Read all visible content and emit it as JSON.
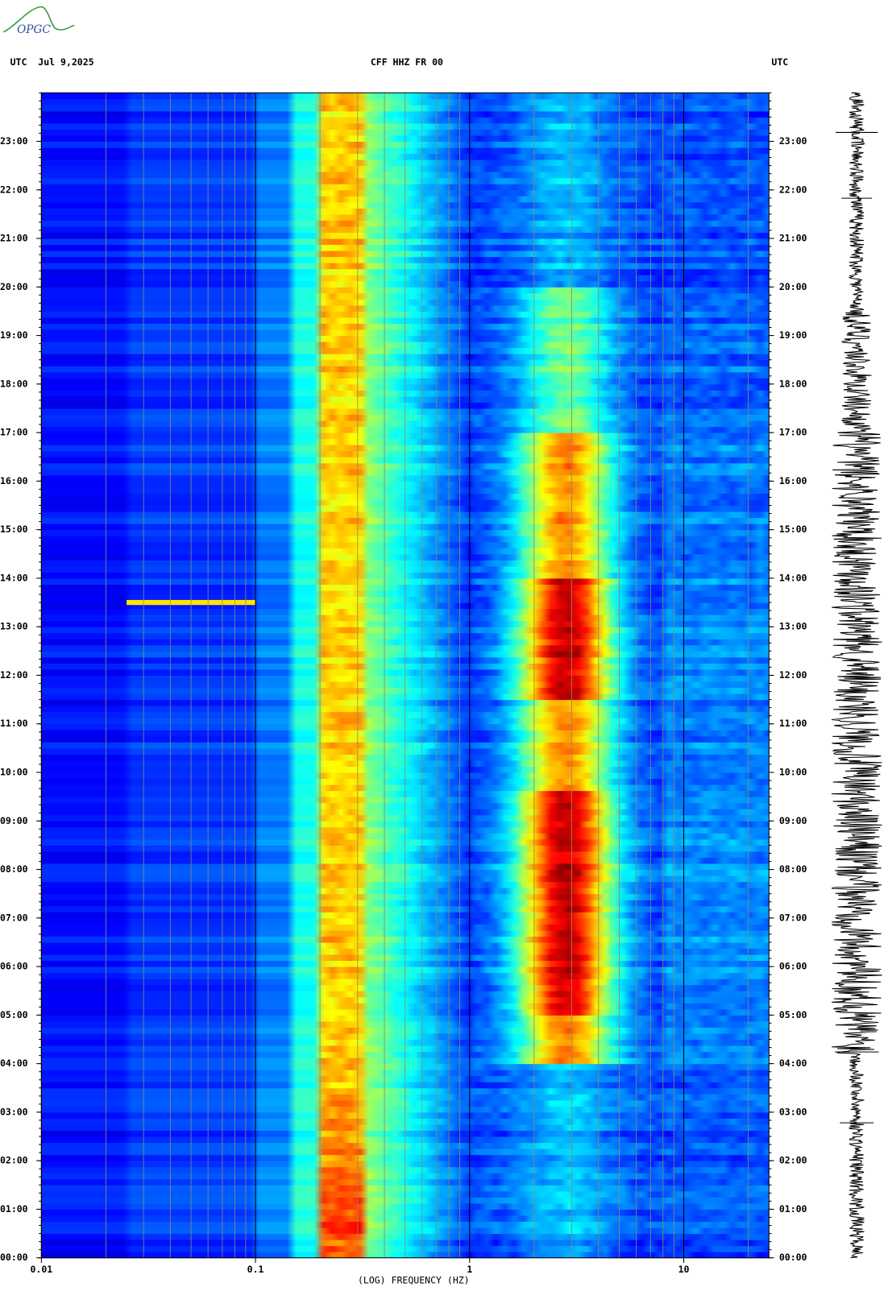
{
  "chart_data": {
    "type": "spectrogram",
    "logo": "OPGC",
    "header_left": "UTC  Jul 9,2025",
    "title": "CFF HHZ FR 00",
    "header_right": "UTC",
    "xlabel": "(LOG) FREQUENCY (HZ)",
    "xscale": "log",
    "xlim": [
      0.01,
      25
    ],
    "xticks": [
      0.01,
      0.1,
      1,
      10
    ],
    "ylim": [
      0,
      24
    ],
    "yticks": [
      {
        "value": 0,
        "label": "00:00"
      },
      {
        "value": 1,
        "label": "01:00"
      },
      {
        "value": 2,
        "label": "02:00"
      },
      {
        "value": 3,
        "label": "03:00"
      },
      {
        "value": 4,
        "label": "04:00"
      },
      {
        "value": 5,
        "label": "05:00"
      },
      {
        "value": 6,
        "label": "06:00"
      },
      {
        "value": 7,
        "label": "07:00"
      },
      {
        "value": 8,
        "label": "08:00"
      },
      {
        "value": 9,
        "label": "09:00"
      },
      {
        "value": 10,
        "label": "10:00"
      },
      {
        "value": 11,
        "label": "11:00"
      },
      {
        "value": 12,
        "label": "12:00"
      },
      {
        "value": 13,
        "label": "13:00"
      },
      {
        "value": 14,
        "label": "14:00"
      },
      {
        "value": 15,
        "label": "15:00"
      },
      {
        "value": 16,
        "label": "16:00"
      },
      {
        "value": 17,
        "label": "17:00"
      },
      {
        "value": 18,
        "label": "18:00"
      },
      {
        "value": 19,
        "label": "19:00"
      },
      {
        "value": 20,
        "label": "20:00"
      },
      {
        "value": 21,
        "label": "21:00"
      },
      {
        "value": 22,
        "label": "22:00"
      },
      {
        "value": 23,
        "label": "23:00"
      }
    ],
    "grid": true
  }
}
